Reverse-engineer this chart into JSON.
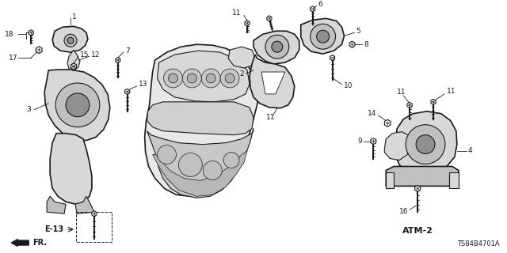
{
  "bg_color": "#ffffff",
  "line_color": "#1a1a1a",
  "diagram_id": "TS84B4701A",
  "fig_width": 6.4,
  "fig_height": 3.2,
  "dpi": 100,
  "labels": {
    "fr_arrow": "FR.",
    "atm2": "ATM-2",
    "e13": "E-13"
  },
  "gray_light": "#e0e0e0",
  "gray_mid": "#c0c0c0",
  "gray_dark": "#909090",
  "gray_fill": "#d8d8d8"
}
